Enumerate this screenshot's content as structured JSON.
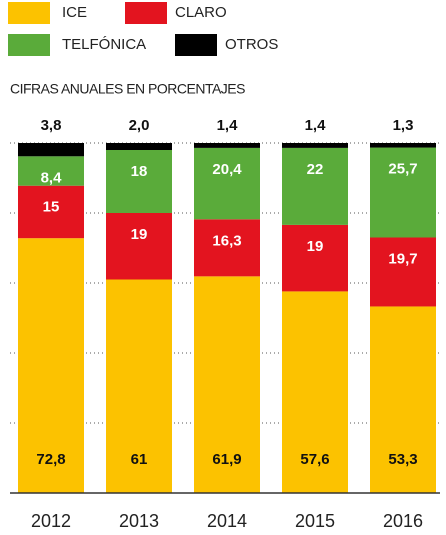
{
  "chart_data": {
    "type": "stacked_bar",
    "subtitle": "CIFRAS ANUALES EN PORCENTAJES",
    "categories": [
      "2012",
      "2013",
      "2014",
      "2015",
      "2016"
    ],
    "series": [
      {
        "name": "ICE",
        "color": "#fcc200",
        "values": [
          72.8,
          61,
          61.9,
          57.6,
          53.3
        ],
        "value_labels": [
          "72,8",
          "61",
          "61,9",
          "57,6",
          "53,3"
        ]
      },
      {
        "name": "CLARO",
        "color": "#e3141f",
        "values": [
          15,
          19,
          16.3,
          19,
          19.7
        ],
        "value_labels": [
          "15",
          "19",
          "16,3",
          "19",
          "19,7"
        ]
      },
      {
        "name": "TELFÓNICA",
        "color": "#5aab3a",
        "values": [
          8.4,
          18,
          20.4,
          22,
          25.7
        ],
        "value_labels": [
          "8,4",
          "18",
          "20,4",
          "22",
          "25,7"
        ]
      },
      {
        "name": "OTROS",
        "color": "#000000",
        "values": [
          3.8,
          2.0,
          1.4,
          1.4,
          1.3
        ],
        "value_labels": [
          "3,8",
          "2,0",
          "1,4",
          "1,4",
          "1,3"
        ]
      }
    ],
    "ylim": [
      0,
      100
    ],
    "yticks": [
      0,
      20,
      40,
      60,
      80,
      100
    ],
    "grid": true
  }
}
